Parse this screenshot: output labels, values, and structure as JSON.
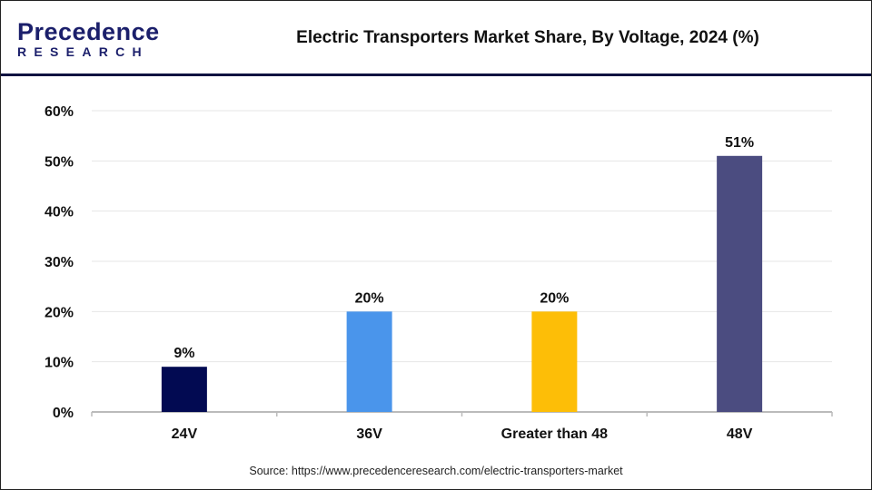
{
  "logo": {
    "line1": "Precedence",
    "line2": "RESEARCH"
  },
  "source": "Source: https://www.precedenceresearch.com/electric-transporters-market",
  "chart_data": {
    "type": "bar",
    "title": "Electric Transporters Market Share, By Voltage, 2024 (%)",
    "categories": [
      "24V",
      "36V",
      "Greater than 48",
      "48V"
    ],
    "values": [
      9,
      20,
      20,
      51
    ],
    "labels": [
      "9%",
      "20%",
      "20%",
      "51%"
    ],
    "colors": [
      "#020a52",
      "#4a95eb",
      "#fdbe07",
      "#4b4c80"
    ],
    "yticks": [
      "0%",
      "10%",
      "20%",
      "30%",
      "40%",
      "50%",
      "60%"
    ],
    "ylim": [
      0,
      60
    ],
    "grid": true,
    "xlabel": "",
    "ylabel": ""
  }
}
